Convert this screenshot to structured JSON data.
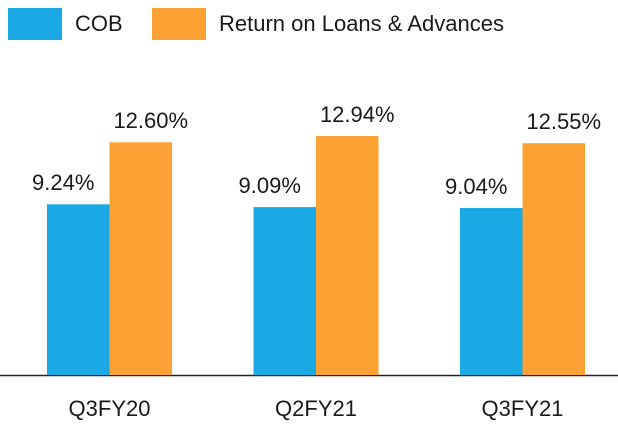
{
  "chart_data": {
    "type": "bar",
    "categories": [
      "Q3FY20",
      "Q2FY21",
      "Q3FY21"
    ],
    "series": [
      {
        "name": "COB",
        "color": "#1aa9e5",
        "values": [
          9.24,
          9.09,
          9.04
        ],
        "value_labels": [
          "9.24%",
          "9.09%",
          "9.04%"
        ]
      },
      {
        "name": "Return on Loans & Advances",
        "color": "#fca134",
        "values": [
          12.6,
          12.94,
          12.55
        ],
        "value_labels": [
          "12.60%",
          "12.94%",
          "12.55%"
        ]
      }
    ],
    "legend": "top-left"
  }
}
